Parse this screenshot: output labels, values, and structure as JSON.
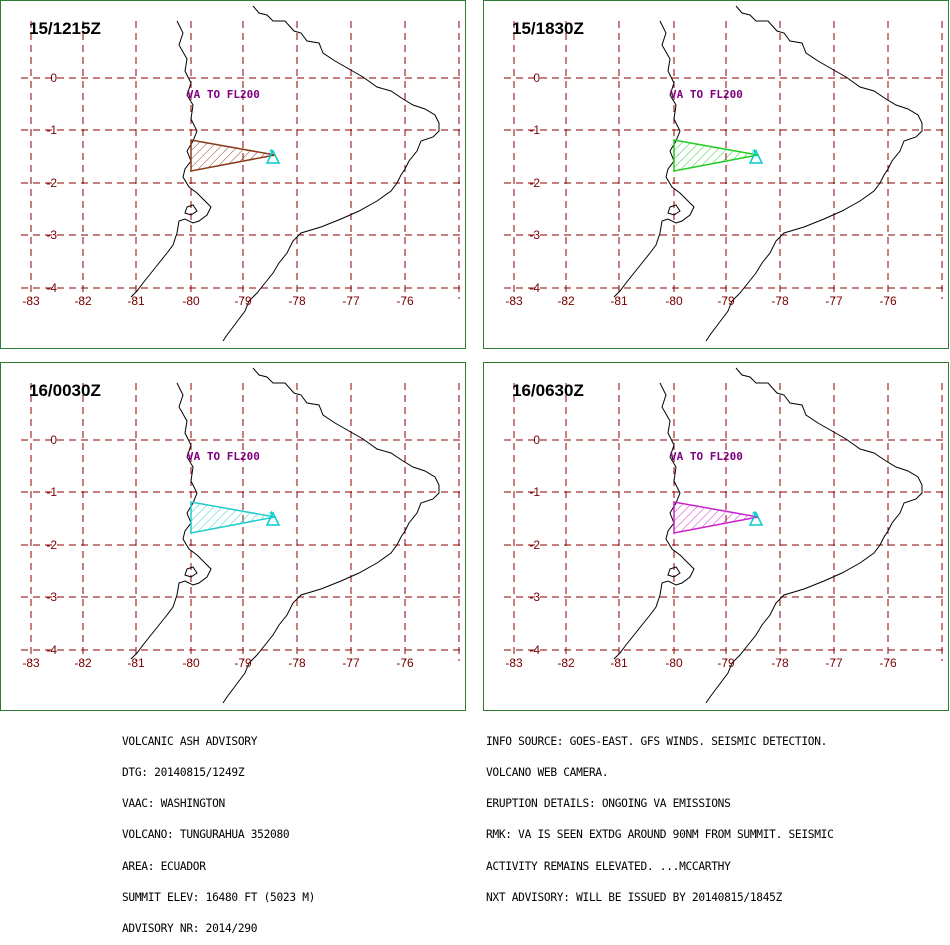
{
  "panels": [
    {
      "title": "15/1215Z",
      "label": "VA TO FL200",
      "polygon_color": "#8b3a1a"
    },
    {
      "title": "15/1830Z",
      "label": "VA TO FL200",
      "polygon_color": "#22cc22"
    },
    {
      "title": "16/0030Z",
      "label": "VA TO FL200",
      "polygon_color": "#22cccc"
    },
    {
      "title": "16/0630Z",
      "label": "VA TO FL200",
      "polygon_color": "#cc22cc"
    }
  ],
  "map": {
    "lon_labels": [
      "-83",
      "-82",
      "-81",
      "-80",
      "-79",
      "-78",
      "-77",
      "-76"
    ],
    "lat_labels": [
      "0",
      "-1",
      "-2",
      "-3",
      "-4"
    ],
    "volcano_marker_color": "#00cccc",
    "grid_color": "#8b0000"
  },
  "advisory_left": [
    "VOLCANIC ASH ADVISORY",
    "DTG: 20140815/1249Z",
    "VAAC: WASHINGTON",
    "VOLCANO: TUNGURAHUA 352080",
    "AREA: ECUADOR",
    "SUMMIT ELEV: 16480 FT (5023 M)",
    "ADVISORY NR: 2014/290"
  ],
  "advisory_right": [
    "INFO SOURCE: GOES-EAST. GFS WINDS. SEISMIC DETECTION.",
    "VOLCANO WEB CAMERA.",
    "ERUPTION DETAILS: ONGOING VA EMISSIONS",
    "RMK: VA IS SEEN EXTDG AROUND 90NM FROM SUMMIT. SEISMIC",
    "ACTIVITY REMAINS ELEVATED. ...MCCARTHY",
    "NXT ADVISORY: WILL BE ISSUED BY 20140815/1845Z"
  ]
}
